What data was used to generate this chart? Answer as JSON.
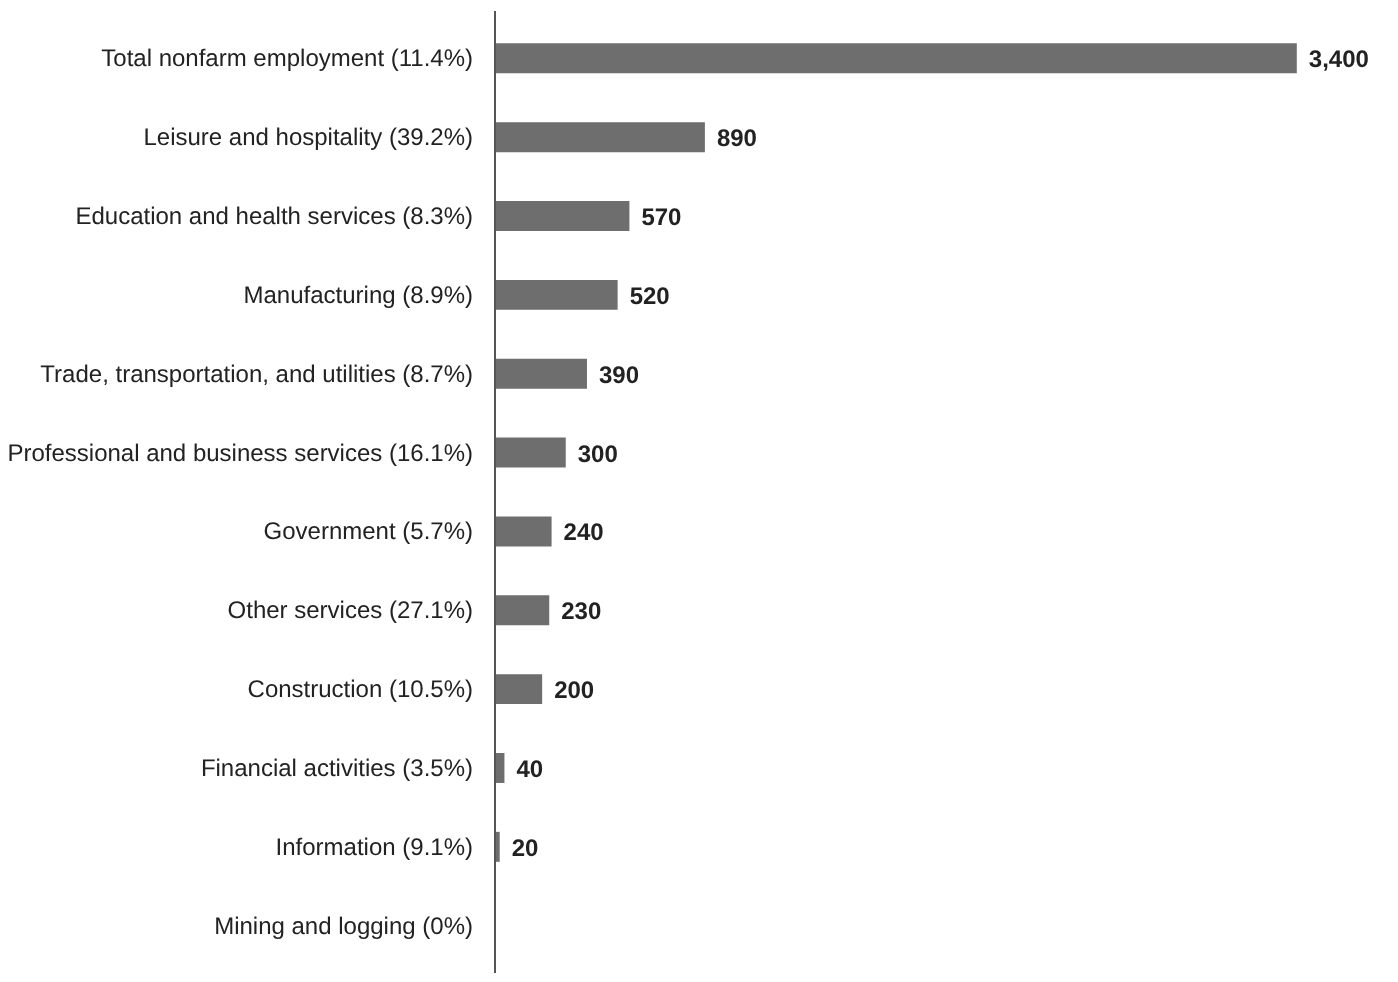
{
  "chart_data": {
    "type": "bar",
    "orientation": "horizontal",
    "categories": [
      "Total nonfarm employment (11.4%)",
      "Leisure and hospitality (39.2%)",
      "Education and health services (8.3%)",
      "Manufacturing (8.9%)",
      "Trade, transportation, and utilities (8.7%)",
      "Professional and business services (16.1%)",
      "Government (5.7%)",
      "Other services (27.1%)",
      "Construction (10.5%)",
      "Financial activities (3.5%)",
      "Information (9.1%)",
      "Mining and logging (0%)"
    ],
    "values": [
      3400,
      890,
      570,
      520,
      390,
      300,
      240,
      230,
      200,
      40,
      20,
      0
    ],
    "value_labels": [
      "3,400",
      "890",
      "570",
      "520",
      "390",
      "300",
      "240",
      "230",
      "200",
      "40",
      "20",
      null
    ],
    "color": "#6e6e6e"
  }
}
